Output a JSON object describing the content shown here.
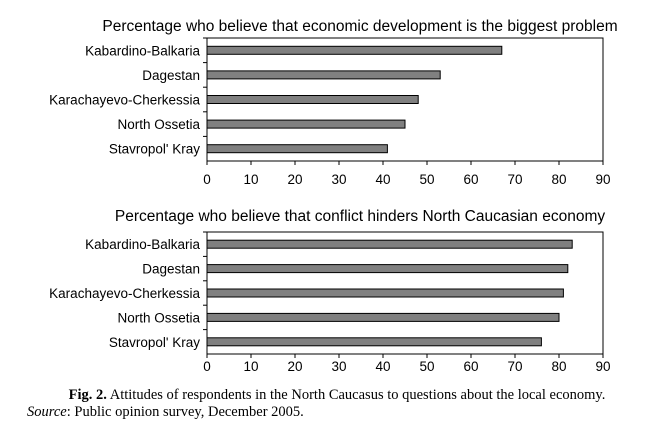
{
  "chart_data": [
    {
      "type": "bar",
      "orientation": "horizontal",
      "title": "Percentage who believe that economic development is the biggest problem",
      "categories": [
        "Kabardino-Balkaria",
        "Dagestan",
        "Karachayevo-Cherkessia",
        "North Ossetia",
        "Stavropol' Kray"
      ],
      "values": [
        67,
        53,
        48,
        45,
        41
      ],
      "xlim": [
        0,
        90
      ],
      "xticks": [
        "0",
        "10",
        "20",
        "30",
        "40",
        "50",
        "60",
        "70",
        "80",
        "90"
      ],
      "grid": false,
      "legend": "none",
      "bar_color": "#808080"
    },
    {
      "type": "bar",
      "orientation": "horizontal",
      "title": "Percentage who believe that conflict hinders North Caucasian economy",
      "categories": [
        "Kabardino-Balkaria",
        "Dagestan",
        "Karachayevo-Cherkessia",
        "North Ossetia",
        "Stavropol' Kray"
      ],
      "values": [
        83,
        82,
        81,
        80,
        76
      ],
      "xlim": [
        0,
        90
      ],
      "xticks": [
        "0",
        "10",
        "20",
        "30",
        "40",
        "50",
        "60",
        "70",
        "80",
        "90"
      ],
      "grid": false,
      "legend": "none",
      "bar_color": "#808080"
    }
  ],
  "caption": {
    "fig_label": "Fig. 2.",
    "fig_text": " Attitudes of respondents in the North Caucasus to questions about the local economy.",
    "source_label": "Source",
    "source_text": ": Public opinion survey, December 2005."
  }
}
